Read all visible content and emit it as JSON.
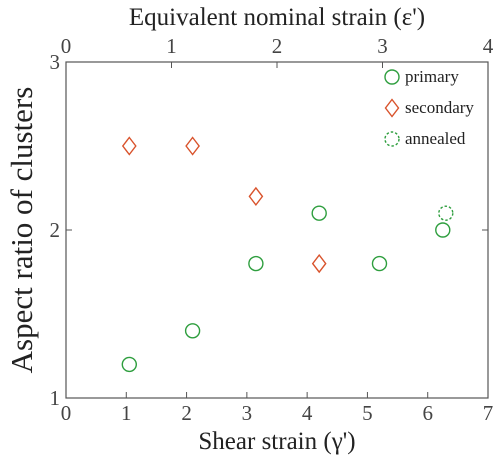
{
  "chart_data": {
    "type": "scatter",
    "ylabel": "Aspect ratio of clusters",
    "xlabel_bottom": "Shear strain (γ')",
    "xlabel_top": "Equivalent nominal strain (ε')",
    "xlim_bottom": [
      0,
      7
    ],
    "xlim_top": [
      0,
      4
    ],
    "ylim": [
      1,
      3
    ],
    "xticks_bottom": [
      0,
      1,
      2,
      3,
      4,
      5,
      6,
      7
    ],
    "xticks_top": [
      0,
      1,
      2,
      3,
      4
    ],
    "yticks": [
      1,
      2,
      3
    ],
    "grid": false,
    "legend_position": "top-right",
    "series": [
      {
        "name": "primary",
        "marker": "circle",
        "color": "#2e9e3e",
        "points": [
          {
            "x": 1.05,
            "y": 1.2
          },
          {
            "x": 2.1,
            "y": 1.4
          },
          {
            "x": 3.15,
            "y": 1.8
          },
          {
            "x": 4.2,
            "y": 2.1
          },
          {
            "x": 5.2,
            "y": 1.8
          },
          {
            "x": 6.25,
            "y": 2.0
          }
        ]
      },
      {
        "name": "secondary",
        "marker": "diamond",
        "color": "#d9532c",
        "points": [
          {
            "x": 1.05,
            "y": 2.5
          },
          {
            "x": 2.1,
            "y": 2.5
          },
          {
            "x": 3.15,
            "y": 2.2
          },
          {
            "x": 4.2,
            "y": 1.8
          }
        ]
      },
      {
        "name": "annealed",
        "marker": "dashed-circle",
        "color": "#2e9e3e",
        "points": [
          {
            "x": 6.3,
            "y": 2.1
          }
        ]
      }
    ]
  }
}
